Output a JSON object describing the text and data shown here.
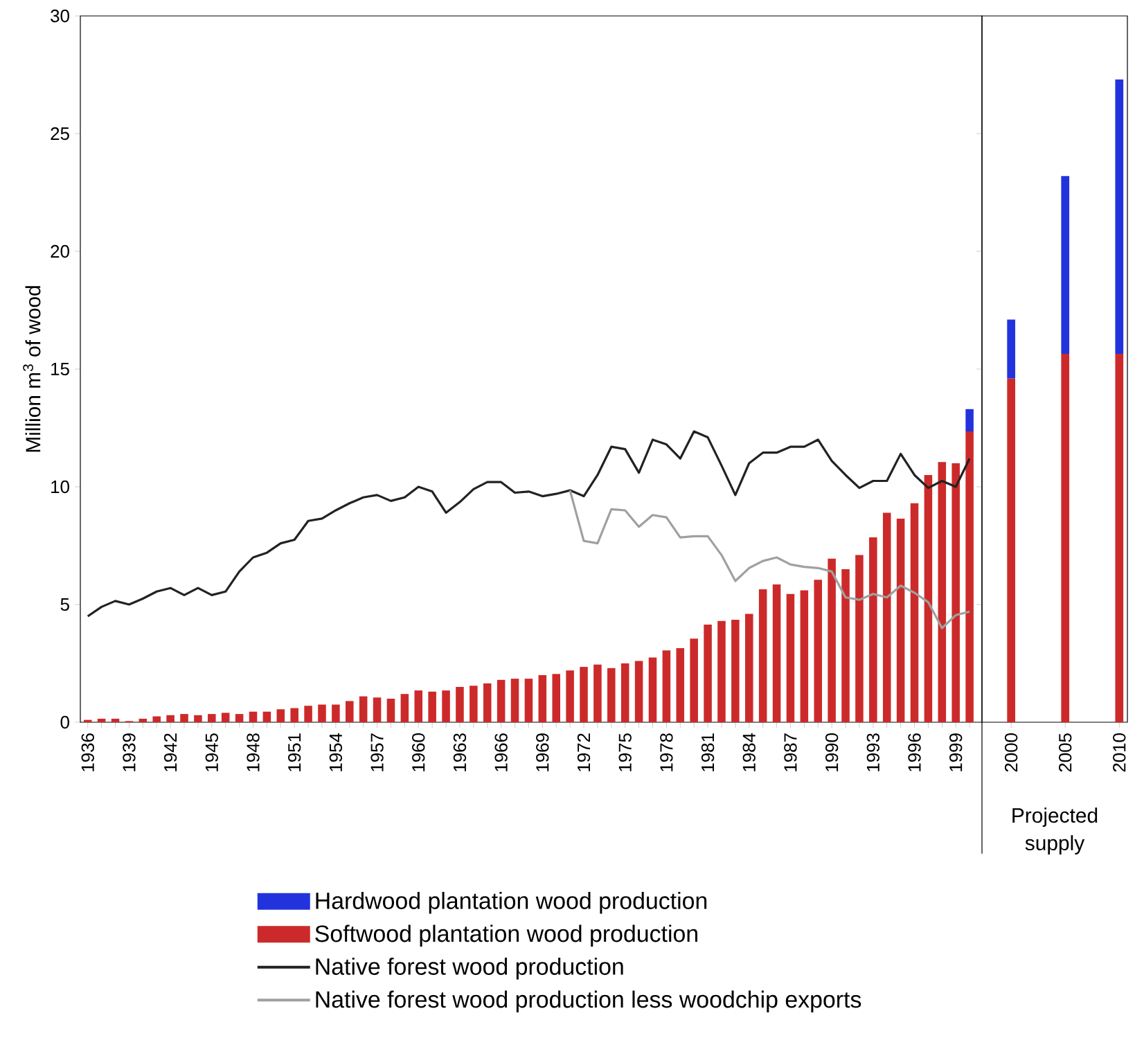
{
  "chart_data": [
    {
      "type": "bar",
      "ylabel": "Million m$^{3}$ of wood",
      "stacked": true,
      "legend": "bottom",
      "marker": "none",
      "categories": [
        "1936",
        null,
        null,
        "1939",
        null,
        null,
        "1942",
        null,
        null,
        "1945",
        null,
        null,
        "1948",
        null,
        null,
        "1951",
        null,
        null,
        "1954",
        null,
        null,
        "1957",
        null,
        null,
        "1960",
        null,
        null,
        "1963",
        null,
        null,
        "1966",
        null,
        null,
        "1969",
        null,
        null,
        "1972",
        null,
        null,
        "1975",
        null,
        null,
        "1978",
        null,
        null,
        "1981",
        null,
        null,
        "1984",
        null,
        null,
        "1987",
        null,
        null,
        "1990",
        null,
        null,
        "1993",
        null,
        null,
        "1996",
        null,
        null,
        "1999",
        null
      ],
      "ylim": [
        0,
        30
      ],
      "yticks": [
        0,
        5,
        10,
        15,
        20,
        25,
        30
      ],
      "series": [
        {
          "name": "Softwood plantation wood production",
          "type": "bar",
          "color": "#cc2a2a",
          "values": [
            0.1,
            0.15,
            0.15,
            0.05,
            0.15,
            0.25,
            0.3,
            0.35,
            0.3,
            0.35,
            0.4,
            0.35,
            0.45,
            0.45,
            0.55,
            0.6,
            0.7,
            0.75,
            0.75,
            0.9,
            1.1,
            1.05,
            1.0,
            1.2,
            1.35,
            1.3,
            1.35,
            1.5,
            1.55,
            1.65,
            1.8,
            1.85,
            1.85,
            2.0,
            2.05,
            2.2,
            2.35,
            2.45,
            2.3,
            2.5,
            2.6,
            2.75,
            3.05,
            3.15,
            3.55,
            4.15,
            4.3,
            4.35,
            4.6,
            5.65,
            5.85,
            5.45,
            5.6,
            6.05,
            6.95,
            6.5,
            7.1,
            7.85,
            8.9,
            8.65,
            9.3,
            10.5,
            11.05,
            11.0,
            12.35
          ]
        },
        {
          "name": "Hardwood plantation wood production",
          "type": "bar",
          "color": "#2233dd",
          "values": [
            null,
            null,
            null,
            null,
            null,
            null,
            null,
            null,
            null,
            null,
            null,
            null,
            null,
            null,
            null,
            null,
            null,
            null,
            null,
            null,
            null,
            null,
            null,
            null,
            null,
            null,
            null,
            null,
            null,
            null,
            null,
            null,
            null,
            null,
            null,
            null,
            null,
            null,
            null,
            null,
            null,
            null,
            null,
            null,
            null,
            null,
            null,
            null,
            null,
            null,
            null,
            null,
            null,
            null,
            null,
            null,
            null,
            null,
            null,
            null,
            null,
            null,
            null,
            null,
            0.95
          ]
        },
        {
          "name": "Native forest wood production",
          "type": "line",
          "color": "#222222",
          "values": [
            4.5,
            4.9,
            5.15,
            5.0,
            5.25,
            5.55,
            5.7,
            5.4,
            5.7,
            5.4,
            5.55,
            6.4,
            7.0,
            7.2,
            7.6,
            7.75,
            8.55,
            8.65,
            9.0,
            9.3,
            9.55,
            9.65,
            9.4,
            9.55,
            10.0,
            9.8,
            8.9,
            9.35,
            9.9,
            10.2,
            10.2,
            9.75,
            9.8,
            9.6,
            9.7,
            9.85,
            9.6,
            10.5,
            11.7,
            11.6,
            10.6,
            12.0,
            11.8,
            11.2,
            12.35,
            12.1,
            10.9,
            9.65,
            11.0,
            11.45,
            11.45,
            11.7,
            11.7,
            12.0,
            11.1,
            10.5,
            9.95,
            10.25,
            10.25,
            11.4,
            10.5,
            9.95,
            10.25,
            10.0,
            11.2
          ]
        },
        {
          "name": "Native forest wood production less woodchip exports",
          "type": "line",
          "color": "#a0a0a0",
          "values": [
            null,
            null,
            null,
            null,
            null,
            null,
            null,
            null,
            null,
            null,
            null,
            null,
            null,
            null,
            null,
            null,
            null,
            null,
            null,
            null,
            null,
            null,
            null,
            null,
            null,
            null,
            null,
            null,
            null,
            null,
            null,
            null,
            null,
            null,
            null,
            9.85,
            7.7,
            7.6,
            9.05,
            9.0,
            8.3,
            8.8,
            8.7,
            7.85,
            7.9,
            7.9,
            7.1,
            6.0,
            6.55,
            6.85,
            7.0,
            6.7,
            6.6,
            6.55,
            6.4,
            5.3,
            5.2,
            5.45,
            5.3,
            5.8,
            5.5,
            5.1,
            4.0,
            4.55,
            4.7
          ]
        }
      ]
    },
    {
      "type": "bar",
      "stacked": true,
      "tick_labels": "x",
      "annotations": [
        "Projected supply"
      ],
      "categories": [
        "2000",
        "2005",
        "2010"
      ],
      "ylim": [
        0,
        30
      ],
      "yticks": [
        0,
        5,
        10,
        15,
        20,
        25,
        30
      ],
      "series": [
        {
          "color": "#cc2a2a",
          "values": [
            14.6,
            15.65,
            15.65
          ]
        },
        {
          "color": "#2233dd",
          "values": [
            2.5,
            7.55,
            11.65
          ]
        }
      ]
    }
  ]
}
